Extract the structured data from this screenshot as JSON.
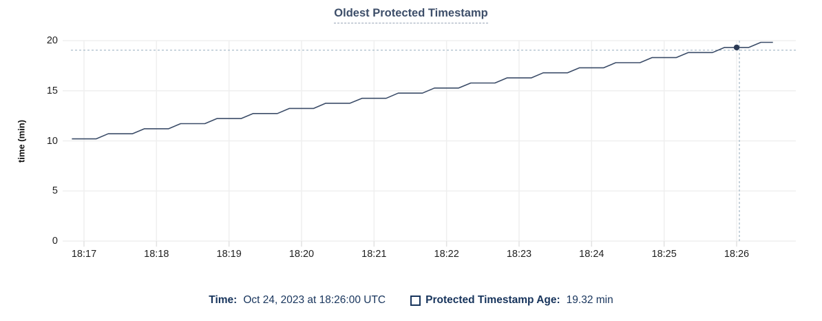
{
  "title": "Oldest Protected Timestamp",
  "tooltip": {
    "time_label": "Time:",
    "time_value": "Oct 24, 2023 at 18:26:00 UTC",
    "series_label": "Protected Timestamp Age:",
    "series_value": "19.32 min"
  },
  "colors": {
    "line": "#3b4c68",
    "dot": "#2b3a55",
    "crosshair": "#a9bbc8",
    "grid": "#efefef",
    "axis_tick_mark": "#e2e2e2",
    "title_text": "#3d4e69",
    "legend_text": "#17345c",
    "tick_text": "#1f1f1f"
  },
  "chart_data": {
    "type": "line",
    "title": "Oldest Protected Timestamp",
    "xlabel": "",
    "ylabel": "time (min)",
    "ylim": [
      0,
      20
    ],
    "y_ticks": [
      0,
      5,
      10,
      15,
      20
    ],
    "x_ticks": [
      "18:17",
      "18:18",
      "18:19",
      "18:20",
      "18:21",
      "18:22",
      "18:23",
      "18:24",
      "18:25",
      "18:26"
    ],
    "grid": true,
    "legend_position": "bottom",
    "series": [
      {
        "name": "Protected Timestamp Age",
        "unit": "min",
        "start_time": "18:16:50",
        "sample_interval_seconds": 10,
        "values": [
          10.2,
          10.2,
          10.2,
          10.71,
          10.71,
          10.71,
          11.21,
          11.21,
          11.21,
          11.72,
          11.72,
          11.72,
          12.23,
          12.23,
          12.23,
          12.73,
          12.73,
          12.73,
          13.24,
          13.24,
          13.24,
          13.75,
          13.75,
          13.75,
          14.25,
          14.25,
          14.25,
          14.76,
          14.76,
          14.76,
          15.27,
          15.27,
          15.27,
          15.77,
          15.77,
          15.77,
          16.28,
          16.28,
          16.28,
          16.79,
          16.79,
          16.79,
          17.29,
          17.29,
          17.29,
          17.8,
          17.8,
          17.8,
          18.31,
          18.31,
          18.31,
          18.81,
          18.81,
          18.81,
          19.32,
          19.32,
          19.32,
          19.83,
          19.83
        ]
      }
    ],
    "hover": {
      "sample_index": 55,
      "time": "18:26:00",
      "date_label": "Oct 24, 2023 at 18:26:00 UTC",
      "value": 19.32,
      "value_label": "19.32 min"
    }
  }
}
